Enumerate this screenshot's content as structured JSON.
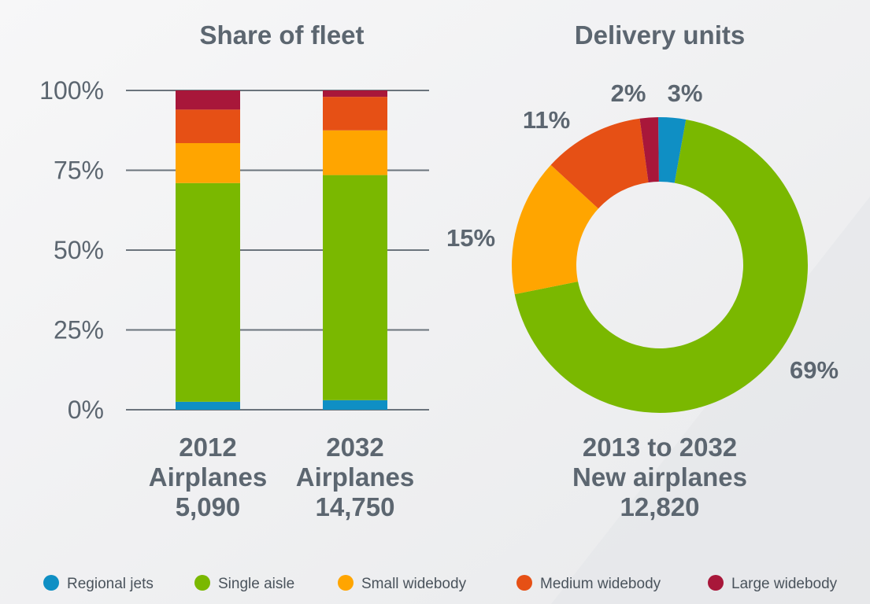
{
  "chart_data": [
    {
      "type": "bar",
      "stacked": true,
      "title": "Share of fleet",
      "ylim": [
        0,
        100
      ],
      "yticks": [
        "0%",
        "25%",
        "50%",
        "75%",
        "100%"
      ],
      "grid": true,
      "categories": [
        {
          "line1": "2012",
          "line2": "Airplanes",
          "line3": "5,090"
        },
        {
          "line1": "2032",
          "line2": "Airplanes",
          "line3": "14,750"
        }
      ],
      "series": [
        {
          "name": "Regional jets",
          "color": "#0f8fc4",
          "values": [
            2.5,
            3
          ]
        },
        {
          "name": "Single aisle",
          "color": "#7ab800",
          "values": [
            68.5,
            70.5
          ]
        },
        {
          "name": "Small widebody",
          "color": "#ffa500",
          "values": [
            12.5,
            14
          ]
        },
        {
          "name": "Medium widebody",
          "color": "#e65015",
          "values": [
            10.5,
            10.5
          ]
        },
        {
          "name": "Large widebody",
          "color": "#a8173a",
          "values": [
            6,
            2
          ]
        }
      ]
    },
    {
      "type": "pie",
      "donut": true,
      "title": "Delivery units",
      "caption": {
        "line1": "2013 to 2032",
        "line2": "New airplanes",
        "line3": "12,820"
      },
      "slices": [
        {
          "name": "Regional jets",
          "color": "#0f8fc4",
          "value": 3,
          "label": "3%"
        },
        {
          "name": "Single aisle",
          "color": "#7ab800",
          "value": 69,
          "label": "69%"
        },
        {
          "name": "Small widebody",
          "color": "#ffa500",
          "value": 15,
          "label": "15%"
        },
        {
          "name": "Medium widebody",
          "color": "#e65015",
          "value": 11,
          "label": "11%"
        },
        {
          "name": "Large widebody",
          "color": "#a8173a",
          "value": 2,
          "label": "2%"
        }
      ]
    }
  ],
  "legend": {
    "placement": "bottom",
    "items": [
      {
        "label": "Regional jets",
        "color": "#0f8fc4"
      },
      {
        "label": "Single aisle",
        "color": "#7ab800"
      },
      {
        "label": "Small widebody",
        "color": "#ffa500"
      },
      {
        "label": "Medium widebody",
        "color": "#e65015"
      },
      {
        "label": "Large widebody",
        "color": "#a8173a"
      }
    ]
  }
}
